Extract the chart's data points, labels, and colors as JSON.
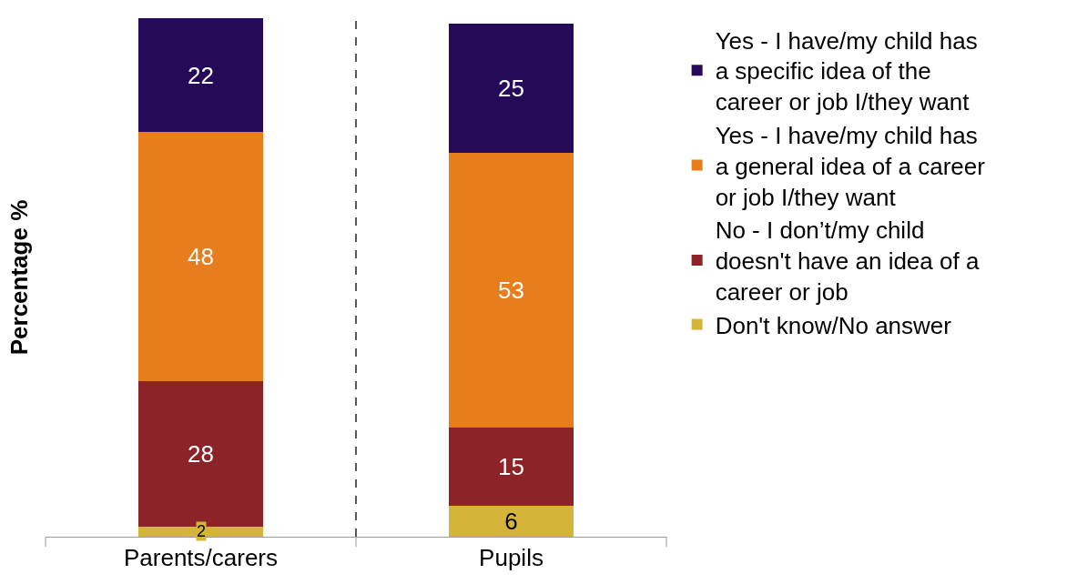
{
  "chart_data": {
    "type": "bar",
    "stacked": true,
    "ylabel": "Percentage %",
    "categories": [
      "Parents/carers",
      "Pupils"
    ],
    "series": [
      {
        "name": "Don't know/No answer",
        "color": "#d4b53a",
        "values": [
          2,
          6
        ]
      },
      {
        "name": "No - I don’t/my child doesn't have an idea of a career or job",
        "color": "#8b2329",
        "values": [
          28,
          15
        ]
      },
      {
        "name": "Yes - I have/my child has a general idea of a career or job I/they want",
        "color": "#e87d1e",
        "values": [
          48,
          53
        ]
      },
      {
        "name": "Yes - I have/my child has a specific idea of the career or job I/they want",
        "color": "#240a58",
        "values": [
          22,
          25
        ]
      }
    ],
    "data_labels": true,
    "legend": "right",
    "grid": false
  }
}
